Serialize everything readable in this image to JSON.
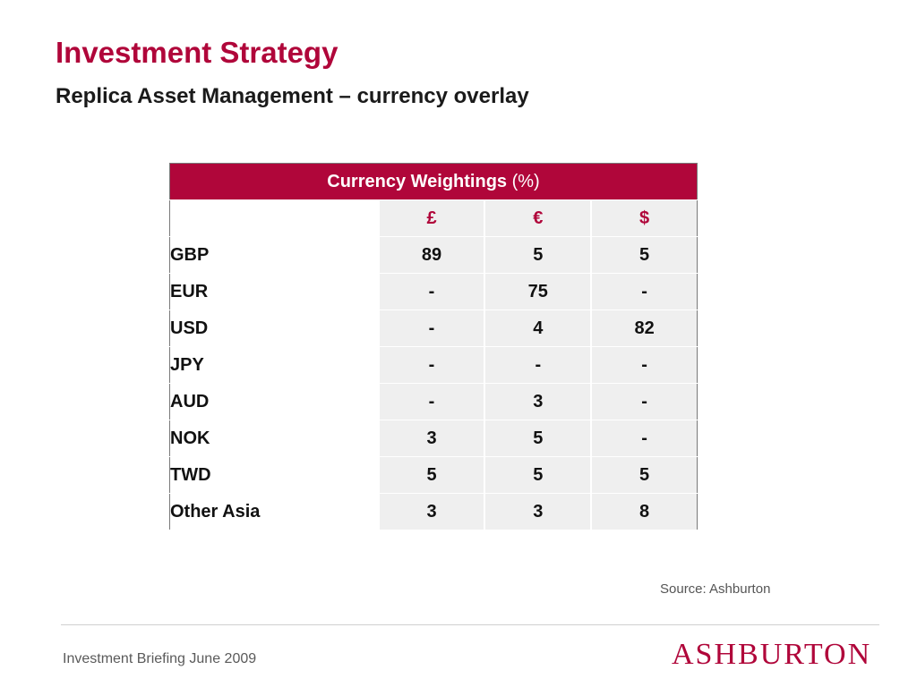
{
  "slide": {
    "title": "Investment Strategy",
    "subtitle": "Replica Asset Management – currency overlay",
    "source": "Source: Ashburton",
    "footer": "Investment Briefing June 2009",
    "brand_logo_text": "ASHBURTON"
  },
  "table": {
    "header_main": "Currency Weightings",
    "header_unit": "(%)",
    "columns": [
      "£",
      "€",
      "$"
    ],
    "rows": [
      {
        "label": "GBP",
        "values": [
          "89",
          "5",
          "5"
        ]
      },
      {
        "label": "EUR",
        "values": [
          "-",
          "75",
          "-"
        ]
      },
      {
        "label": "USD",
        "values": [
          "-",
          "4",
          "82"
        ]
      },
      {
        "label": "JPY",
        "values": [
          "-",
          "-",
          "-"
        ]
      },
      {
        "label": "AUD",
        "values": [
          "-",
          "3",
          "-"
        ]
      },
      {
        "label": "NOK",
        "values": [
          "3",
          "5",
          "-"
        ]
      },
      {
        "label": "TWD",
        "values": [
          "5",
          "5",
          "5"
        ]
      },
      {
        "label": "Other Asia",
        "values": [
          "3",
          "3",
          "8"
        ]
      }
    ]
  },
  "colors": {
    "accent": "#b0063a",
    "cell_background": "#efefef",
    "text": "#111111"
  }
}
